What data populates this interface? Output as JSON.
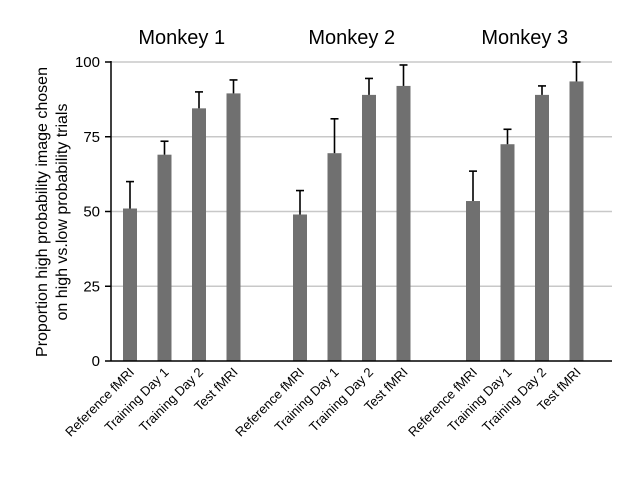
{
  "chart_data": {
    "type": "bar",
    "ylabel": "Proportion high probability image chosen on high vs.low probability trials",
    "ylabel_lines": [
      "Proportion high probability image chosen",
      "on high vs.low probability trials"
    ],
    "ylim": [
      0,
      100
    ],
    "yticks": [
      0,
      25,
      50,
      75,
      100
    ],
    "grid": true,
    "bar_color": "#707070",
    "grid_color": "#c8c8c8",
    "categories": [
      "Reference fMRI",
      "Training Day 1",
      "Training Day 2",
      "Test fMRI"
    ],
    "groups": [
      {
        "title": "Monkey 1",
        "values": [
          51,
          69,
          84.5,
          89.5
        ],
        "errors": [
          9,
          4.5,
          5.5,
          4.5
        ]
      },
      {
        "title": "Monkey 2",
        "values": [
          49,
          69.5,
          89,
          92
        ],
        "errors": [
          8,
          11.5,
          5.5,
          7
        ]
      },
      {
        "title": "Monkey 3",
        "values": [
          53.5,
          72.5,
          89,
          93.5
        ],
        "errors": [
          10,
          5,
          3,
          6.5
        ]
      }
    ]
  }
}
